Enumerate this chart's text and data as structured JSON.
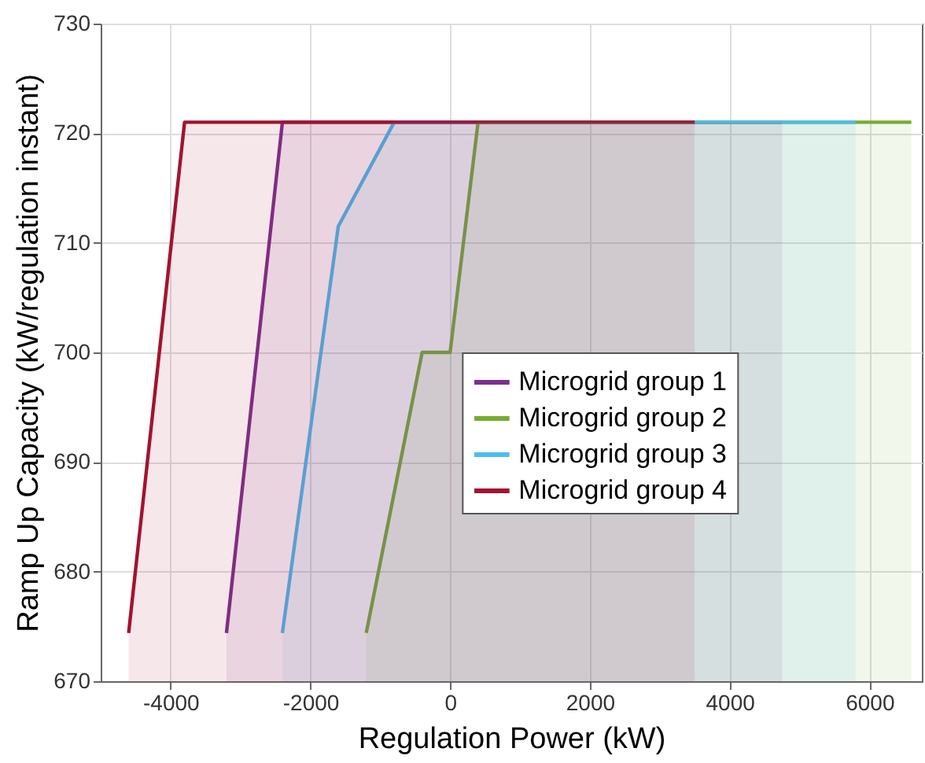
{
  "chart_data": {
    "type": "area",
    "xlabel": "Regulation Power (kW)",
    "ylabel": "Ramp Up Capacity (kW/regulation instant)",
    "series": [
      {
        "name": "Microgrid group 1",
        "color": "#7e2f8e",
        "x": [
          -3200,
          -2400,
          4750
        ],
        "values": [
          674.4,
          721,
          721
        ]
      },
      {
        "name": "Microgrid group 2",
        "color": "#77ac30",
        "x": [
          -1200,
          -400,
          0,
          400,
          6600
        ],
        "values": [
          674.4,
          700,
          700,
          721,
          721
        ]
      },
      {
        "name": "Microgrid group 3",
        "color": "#4dbeee",
        "x": [
          -2400,
          -1600,
          -800,
          5800
        ],
        "values": [
          674.4,
          711.5,
          721,
          721
        ]
      },
      {
        "name": "Microgrid group 4",
        "color": "#a2142f",
        "x": [
          -4600,
          -3800,
          3500
        ],
        "values": [
          674.4,
          721,
          721
        ]
      }
    ],
    "xlim": [
      -5000,
      6750
    ],
    "xticks": [
      -4000,
      -2000,
      0,
      2000,
      4000,
      6000
    ],
    "ylim": [
      670,
      730
    ],
    "yticks": [
      670,
      680,
      690,
      700,
      710,
      720,
      730
    ],
    "grid": true,
    "legend": "right"
  }
}
